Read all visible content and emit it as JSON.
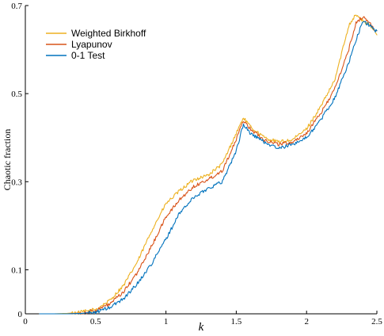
{
  "chart_data": {
    "type": "line",
    "title": "",
    "xlabel": "k",
    "ylabel": "Chaotic fraction",
    "xlim": [
      0,
      2.5
    ],
    "ylim": [
      0,
      0.7
    ],
    "xticks": [
      "0",
      "0.5",
      "1",
      "1.5",
      "2",
      "2.5"
    ],
    "xtick_values": [
      0,
      0.5,
      1,
      1.5,
      2,
      2.5
    ],
    "yticks": [
      "0",
      "0.1",
      "0.3",
      "0.5",
      "0.7"
    ],
    "ytick_values": [
      0,
      0.1,
      0.3,
      0.5,
      0.7
    ],
    "legend_position": "top-left",
    "grid": false,
    "x": [
      0.1,
      0.2,
      0.3,
      0.4,
      0.5,
      0.6,
      0.7,
      0.8,
      0.9,
      1.0,
      1.1,
      1.2,
      1.3,
      1.4,
      1.5,
      1.55,
      1.6,
      1.7,
      1.8,
      1.9,
      2.0,
      2.1,
      2.2,
      2.3,
      2.35,
      2.4,
      2.45,
      2.5
    ],
    "series": [
      {
        "name": "Weighted Birkhoff",
        "color": "#EDB120",
        "values": [
          0.0,
          0.0,
          0.001,
          0.004,
          0.01,
          0.03,
          0.065,
          0.12,
          0.19,
          0.25,
          0.28,
          0.305,
          0.315,
          0.34,
          0.41,
          0.445,
          0.425,
          0.4,
          0.39,
          0.395,
          0.42,
          0.47,
          0.53,
          0.655,
          0.68,
          0.665,
          0.655,
          0.635
        ]
      },
      {
        "name": "Lyapunov",
        "color": "#D95319",
        "values": [
          0.0,
          0.0,
          0.0,
          0.002,
          0.007,
          0.022,
          0.05,
          0.095,
          0.155,
          0.22,
          0.26,
          0.29,
          0.305,
          0.325,
          0.395,
          0.44,
          0.42,
          0.395,
          0.385,
          0.39,
          0.41,
          0.455,
          0.51,
          0.6,
          0.66,
          0.675,
          0.66,
          0.64
        ]
      },
      {
        "name": "0-1 Test",
        "color": "#0072BD",
        "values": [
          0.0,
          0.0,
          0.0,
          0.001,
          0.004,
          0.014,
          0.035,
          0.07,
          0.115,
          0.17,
          0.23,
          0.265,
          0.285,
          0.3,
          0.37,
          0.43,
          0.41,
          0.39,
          0.375,
          0.385,
          0.4,
          0.44,
          0.49,
          0.57,
          0.62,
          0.665,
          0.655,
          0.64
        ]
      }
    ]
  }
}
